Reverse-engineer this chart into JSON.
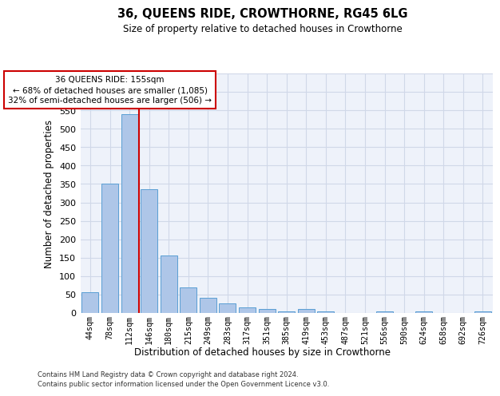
{
  "title": "36, QUEENS RIDE, CROWTHORNE, RG45 6LG",
  "subtitle": "Size of property relative to detached houses in Crowthorne",
  "xlabel": "Distribution of detached houses by size in Crowthorne",
  "ylabel": "Number of detached properties",
  "categories": [
    "44sqm",
    "78sqm",
    "112sqm",
    "146sqm",
    "180sqm",
    "215sqm",
    "249sqm",
    "283sqm",
    "317sqm",
    "351sqm",
    "385sqm",
    "419sqm",
    "453sqm",
    "487sqm",
    "521sqm",
    "556sqm",
    "590sqm",
    "624sqm",
    "658sqm",
    "692sqm",
    "726sqm"
  ],
  "values": [
    57,
    352,
    540,
    335,
    157,
    70,
    42,
    25,
    15,
    10,
    5,
    10,
    5,
    0,
    0,
    5,
    0,
    5,
    0,
    0,
    5
  ],
  "bar_color": "#aec6e8",
  "bar_edge_color": "#5a9fd4",
  "grid_color": "#d0d8e8",
  "background_color": "#eef2fa",
  "annotation_text_line1": "36 QUEENS RIDE: 155sqm",
  "annotation_text_line2": "← 68% of detached houses are smaller (1,085)",
  "annotation_text_line3": "32% of semi-detached houses are larger (506) →",
  "annotation_box_facecolor": "#ffffff",
  "annotation_box_edgecolor": "#cc0000",
  "vline_color": "#cc0000",
  "vline_x": 2.5,
  "ylim": [
    0,
    650
  ],
  "yticks": [
    0,
    50,
    100,
    150,
    200,
    250,
    300,
    350,
    400,
    450,
    500,
    550,
    600,
    650
  ],
  "footer_line1": "Contains HM Land Registry data © Crown copyright and database right 2024.",
  "footer_line2": "Contains public sector information licensed under the Open Government Licence v3.0."
}
